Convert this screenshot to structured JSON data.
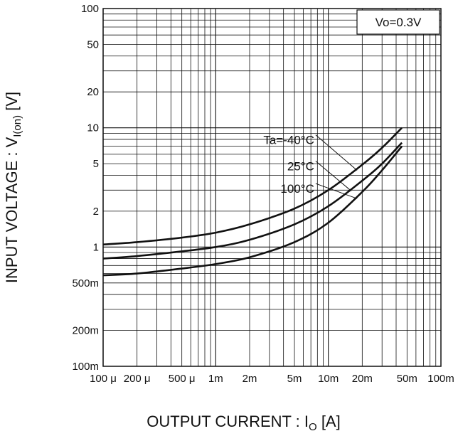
{
  "chart_data": {
    "type": "line",
    "title": "",
    "xlabel": "OUTPUT CURRENT : I",
    "xlabel_sub": "O",
    "xlabel_unit": " [A]",
    "ylabel": "INPUT VOLTAGE : V",
    "ylabel_sub": "I(on)",
    "ylabel_unit": " [V]",
    "xscale": "log",
    "yscale": "log",
    "xlim": [
      0.0001,
      0.1
    ],
    "ylim": [
      0.1,
      100
    ],
    "grid": true,
    "condition": "Vo=0.3V",
    "x_ticks": [
      {
        "value": 0.0001,
        "label": "100 μ"
      },
      {
        "value": 0.0002,
        "label": "200 μ"
      },
      {
        "value": 0.0005,
        "label": "500 μ"
      },
      {
        "value": 0.001,
        "label": "1m"
      },
      {
        "value": 0.002,
        "label": "2m"
      },
      {
        "value": 0.005,
        "label": "5m"
      },
      {
        "value": 0.01,
        "label": "10m"
      },
      {
        "value": 0.02,
        "label": "20m"
      },
      {
        "value": 0.05,
        "label": "50m"
      },
      {
        "value": 0.1,
        "label": "100m"
      }
    ],
    "y_ticks": [
      {
        "value": 0.1,
        "label": "100m"
      },
      {
        "value": 0.2,
        "label": "200m"
      },
      {
        "value": 0.5,
        "label": "500m"
      },
      {
        "value": 1,
        "label": "1"
      },
      {
        "value": 2,
        "label": "2"
      },
      {
        "value": 5,
        "label": "5"
      },
      {
        "value": 10,
        "label": "10"
      },
      {
        "value": 20,
        "label": "20"
      },
      {
        "value": 50,
        "label": "50"
      },
      {
        "value": 100,
        "label": "100"
      }
    ],
    "series": [
      {
        "name": "Ta=-40°C",
        "x": [
          0.0001,
          0.0002,
          0.0005,
          0.001,
          0.002,
          0.005,
          0.01,
          0.02,
          0.03,
          0.045
        ],
        "y": [
          1.05,
          1.1,
          1.2,
          1.32,
          1.55,
          2.1,
          3.0,
          4.9,
          6.8,
          10.0
        ]
      },
      {
        "name": "25°C",
        "x": [
          0.0001,
          0.0002,
          0.0005,
          0.001,
          0.002,
          0.005,
          0.01,
          0.02,
          0.03,
          0.045
        ],
        "y": [
          0.8,
          0.84,
          0.92,
          1.0,
          1.15,
          1.55,
          2.2,
          3.6,
          5.0,
          7.5
        ]
      },
      {
        "name": "100°C",
        "x": [
          0.0001,
          0.0002,
          0.0005,
          0.001,
          0.002,
          0.005,
          0.01,
          0.02,
          0.03,
          0.045
        ],
        "y": [
          0.58,
          0.6,
          0.66,
          0.72,
          0.82,
          1.1,
          1.6,
          2.9,
          4.4,
          7.0
        ]
      }
    ],
    "colors": {
      "curve": "#111111",
      "grid": "#111111",
      "background": "#ffffff"
    }
  }
}
